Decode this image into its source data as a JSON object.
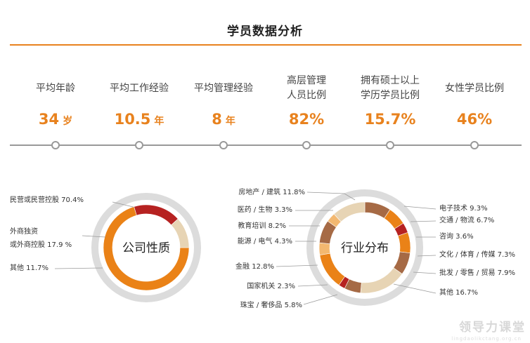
{
  "title": "学员数据分析",
  "stats": [
    {
      "label": "平均年龄",
      "value": "34",
      "unit": "岁"
    },
    {
      "label": "平均工作经验",
      "value": "10.5",
      "unit": "年"
    },
    {
      "label": "平均管理经验",
      "value": "8",
      "unit": "年"
    },
    {
      "label": "高层管理\n人员比例",
      "value": "82%",
      "unit": ""
    },
    {
      "label": "拥有硕士以上\n学历学员比例",
      "value": "15.7%",
      "unit": ""
    },
    {
      "label": "女性学员比例",
      "value": "46%",
      "unit": ""
    }
  ],
  "colors": {
    "accent": "#e8821e",
    "timeline": "#999999"
  },
  "watermark": {
    "main": "领导力课堂",
    "sub": "lingdaolikctang.org.cn"
  },
  "chart_data": [
    {
      "type": "pie",
      "title": "公司性质",
      "slices": [
        {
          "label": "民营或民营控股 70.4%",
          "value": 70.4,
          "color": "#ea8217"
        },
        {
          "label": "外商独资\n或外商控股 17.9 %",
          "value": 17.9,
          "color": "#b62221"
        },
        {
          "label": "其他 11.7%",
          "value": 11.7,
          "color": "#e7d4b4"
        }
      ]
    },
    {
      "type": "pie",
      "title": "行业分布",
      "slices": [
        {
          "label": "电子技术 9.3%",
          "value": 9.3,
          "color": "#a66a45"
        },
        {
          "label": "交通 / 物流 6.7%",
          "value": 6.7,
          "color": "#ea8217"
        },
        {
          "label": "咨询 3.6%",
          "value": 3.6,
          "color": "#b62221"
        },
        {
          "label": "文化 / 体育 / 传媒 7.3%",
          "value": 7.3,
          "color": "#ea8217"
        },
        {
          "label": "批发 / 零售 / 贸易 7.9%",
          "value": 7.9,
          "color": "#a66a45"
        },
        {
          "label": "其他 16.7%",
          "value": 16.7,
          "color": "#e7d4b4"
        },
        {
          "label": "珠宝 / 奢侈品 5.8%",
          "value": 5.8,
          "color": "#a66a45"
        },
        {
          "label": "国家机关 2.3%",
          "value": 2.3,
          "color": "#b62221"
        },
        {
          "label": "金融 12.8%",
          "value": 12.8,
          "color": "#ea8217"
        },
        {
          "label": "能源 / 电气 4.3%",
          "value": 4.3,
          "color": "#f3b870"
        },
        {
          "label": "教育培训 8.2%",
          "value": 8.2,
          "color": "#a66a45"
        },
        {
          "label": "医药 / 生物 3.3%",
          "value": 3.3,
          "color": "#f3b870"
        },
        {
          "label": "房地产 / 建筑 11.8%",
          "value": 11.8,
          "color": "#e7d4b4"
        }
      ]
    }
  ]
}
